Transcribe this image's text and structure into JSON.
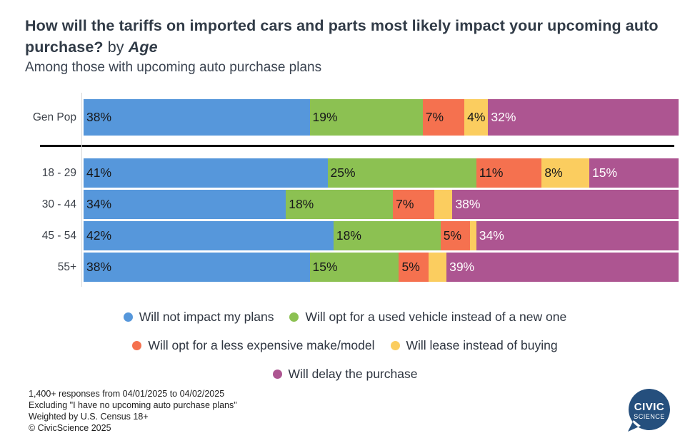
{
  "header": {
    "title_main": "How will the tariffs on imported cars and parts most likely impact your upcoming auto purchase?",
    "title_connector": " by ",
    "title_group": "Age",
    "subtitle": "Among those with upcoming auto purchase plans"
  },
  "chart_data": {
    "type": "bar",
    "variant": "horizontal-stacked-100pct",
    "unit": "%",
    "xlim": [
      0,
      100
    ],
    "grid": false,
    "legend_position": "bottom-center",
    "series_names": [
      "Will not impact my plans",
      "Will opt for a used vehicle instead of a new one",
      "Will opt for a less expensive make/model",
      "Will lease instead of buying",
      "Will delay the purchase"
    ],
    "series_colors": [
      "#5697DB",
      "#8CC152",
      "#F5714F",
      "#FBCD5F",
      "#AD5591"
    ],
    "rows": [
      {
        "label": "Gen Pop",
        "values": [
          38,
          19,
          7,
          4,
          32
        ],
        "data_labels": [
          "38%",
          "19%",
          "7%",
          "4%",
          "32%"
        ]
      },
      {
        "label": "18 - 29",
        "values": [
          41,
          25,
          11,
          8,
          15
        ],
        "data_labels": [
          "41%",
          "25%",
          "11%",
          "8%",
          "15%"
        ]
      },
      {
        "label": "30 - 44",
        "values": [
          34,
          18,
          7,
          3,
          38
        ],
        "data_labels": [
          "34%",
          "18%",
          "7%",
          "",
          "38%"
        ]
      },
      {
        "label": "45 - 54",
        "values": [
          42,
          18,
          5,
          1,
          34
        ],
        "data_labels": [
          "42%",
          "18%",
          "5%",
          "",
          "34%"
        ]
      },
      {
        "label": "55+",
        "values": [
          38,
          15,
          5,
          3,
          39
        ],
        "data_labels": [
          "38%",
          "15%",
          "5%",
          "",
          "39%"
        ]
      }
    ]
  },
  "legend": {
    "rows": [
      [
        {
          "label": "Will not impact my plans",
          "color": "#5697DB"
        },
        {
          "label": "Will opt for a used vehicle instead of a new one",
          "color": "#8CC152"
        }
      ],
      [
        {
          "label": "Will opt for a less expensive make/model",
          "color": "#F5714F"
        },
        {
          "label": "Will lease instead of buying",
          "color": "#FBCD5F"
        }
      ],
      [
        {
          "label": "Will delay the purchase",
          "color": "#AD5591"
        }
      ]
    ]
  },
  "footer": {
    "lines": [
      "1,400+ responses from 04/01/2025 to 04/02/2025",
      "Excluding \"I have no upcoming auto purchase plans\"",
      "Weighted by U.S. Census 18+",
      "© CivicScience 2025"
    ]
  },
  "logo": {
    "line1": "CIVIC",
    "line2": "SCIENCE",
    "color": "#254F7D"
  }
}
